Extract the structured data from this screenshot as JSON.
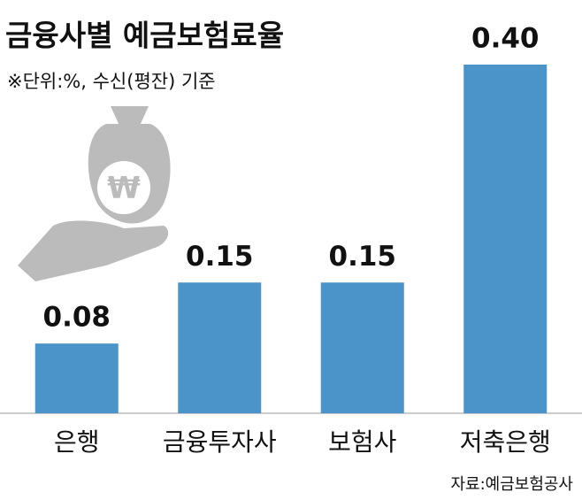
{
  "chart_data": {
    "type": "bar",
    "title": "금융사별 예금보험료율",
    "subtitle": "※단위:%, 수신(평잔) 기준",
    "source": "자료:예금보험공사",
    "categories": [
      "은행",
      "금융투자사",
      "보험사",
      "저축은행"
    ],
    "values": [
      0.08,
      0.15,
      0.15,
      0.4
    ],
    "value_labels": [
      "0.08",
      "0.15",
      "0.15",
      "0.40"
    ],
    "color": "#4b94c9"
  }
}
